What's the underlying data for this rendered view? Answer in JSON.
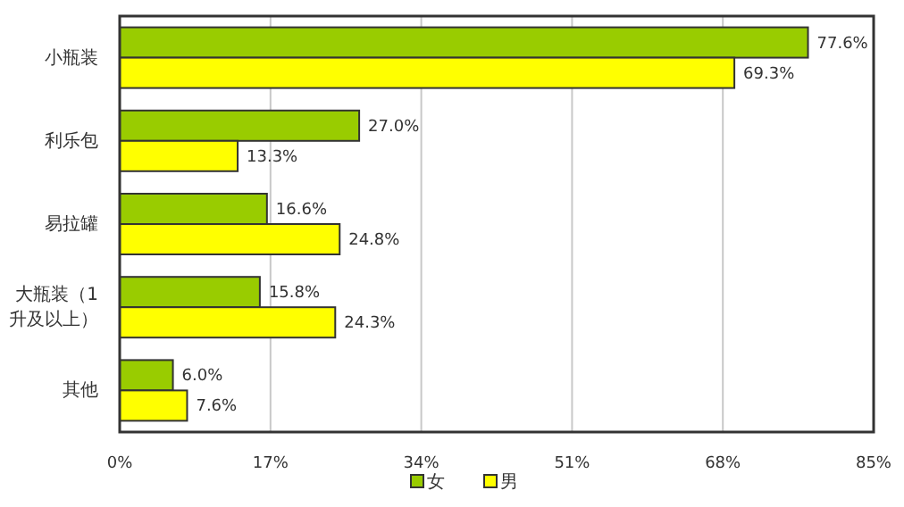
{
  "chart_data": {
    "type": "bar",
    "orientation": "horizontal",
    "categories": [
      "小瓶装",
      "利乐包",
      "易拉罐",
      "大瓶装（1升及以上）",
      "其他"
    ],
    "series": [
      {
        "name": "女",
        "color": "#99cc00",
        "values": [
          77.6,
          27.0,
          16.6,
          15.8,
          6.0
        ],
        "value_labels": [
          "77.6%",
          "27.0%",
          "16.6%",
          "15.8%",
          "6.0%"
        ]
      },
      {
        "name": "男",
        "color": "#ffff00",
        "values": [
          69.3,
          13.3,
          24.8,
          24.3,
          7.6
        ],
        "value_labels": [
          "69.3%",
          "13.3%",
          "24.8%",
          "24.3%",
          "7.6%"
        ]
      }
    ],
    "xlim": [
      0,
      85
    ],
    "xticks": [
      {
        "value": 0,
        "label": "0%"
      },
      {
        "value": 17,
        "label": "17%"
      },
      {
        "value": 34,
        "label": "34%"
      },
      {
        "value": 51,
        "label": "51%"
      },
      {
        "value": 68,
        "label": "68%"
      },
      {
        "value": 85,
        "label": "85%"
      }
    ],
    "grid": "x",
    "legend": "bottom"
  }
}
